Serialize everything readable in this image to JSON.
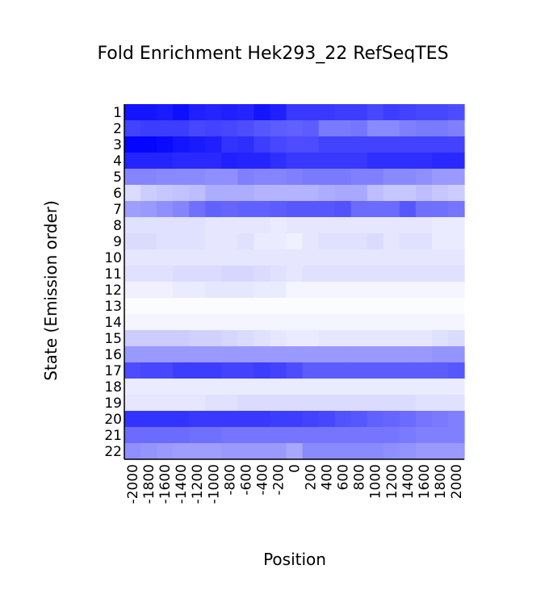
{
  "chart_data": {
    "type": "heatmap",
    "title": "Fold Enrichment Hek293_22 RefSeqTES",
    "xlabel": "Position",
    "ylabel": "State (Emission order)",
    "x": [
      "-2000",
      "-1800",
      "-1600",
      "-1400",
      "-1200",
      "-1000",
      "-800",
      "-600",
      "-400",
      "-200",
      "0",
      "200",
      "400",
      "600",
      "800",
      "1000",
      "1200",
      "1400",
      "1600",
      "1800",
      "2000"
    ],
    "y": [
      "1",
      "2",
      "3",
      "4",
      "5",
      "6",
      "7",
      "8",
      "9",
      "10",
      "11",
      "12",
      "13",
      "14",
      "15",
      "16",
      "17",
      "18",
      "19",
      "20",
      "21",
      "22"
    ],
    "color_low": "#ffffff",
    "color_high": "#0000ff",
    "values": [
      [
        0.92,
        0.92,
        0.9,
        0.94,
        0.88,
        0.86,
        0.88,
        0.86,
        0.92,
        0.88,
        0.78,
        0.78,
        0.78,
        0.76,
        0.76,
        0.72,
        0.76,
        0.74,
        0.72,
        0.72,
        0.7
      ],
      [
        0.74,
        0.76,
        0.76,
        0.76,
        0.72,
        0.74,
        0.72,
        0.7,
        0.66,
        0.64,
        0.62,
        0.64,
        0.52,
        0.52,
        0.54,
        0.46,
        0.46,
        0.5,
        0.52,
        0.52,
        0.5
      ],
      [
        0.98,
        0.98,
        0.96,
        0.92,
        0.9,
        0.88,
        0.8,
        0.82,
        0.76,
        0.72,
        0.7,
        0.7,
        0.74,
        0.74,
        0.74,
        0.74,
        0.74,
        0.74,
        0.74,
        0.74,
        0.74
      ],
      [
        0.86,
        0.86,
        0.86,
        0.84,
        0.84,
        0.84,
        0.88,
        0.86,
        0.86,
        0.82,
        0.78,
        0.78,
        0.78,
        0.78,
        0.78,
        0.82,
        0.82,
        0.82,
        0.82,
        0.84,
        0.84
      ],
      [
        0.48,
        0.48,
        0.46,
        0.46,
        0.46,
        0.44,
        0.44,
        0.5,
        0.48,
        0.48,
        0.5,
        0.52,
        0.52,
        0.52,
        0.5,
        0.5,
        0.46,
        0.46,
        0.44,
        0.4,
        0.4
      ],
      [
        0.14,
        0.2,
        0.22,
        0.24,
        0.26,
        0.32,
        0.32,
        0.32,
        0.3,
        0.3,
        0.3,
        0.3,
        0.32,
        0.34,
        0.34,
        0.26,
        0.22,
        0.22,
        0.26,
        0.22,
        0.2
      ],
      [
        0.38,
        0.4,
        0.44,
        0.48,
        0.56,
        0.62,
        0.6,
        0.62,
        0.62,
        0.64,
        0.66,
        0.66,
        0.66,
        0.68,
        0.58,
        0.58,
        0.58,
        0.66,
        0.56,
        0.56,
        0.54
      ],
      [
        0.12,
        0.12,
        0.12,
        0.12,
        0.12,
        0.1,
        0.1,
        0.1,
        0.1,
        0.08,
        0.1,
        0.1,
        0.1,
        0.1,
        0.1,
        0.1,
        0.1,
        0.1,
        0.1,
        0.08,
        0.08
      ],
      [
        0.14,
        0.14,
        0.12,
        0.12,
        0.12,
        0.1,
        0.1,
        0.12,
        0.08,
        0.08,
        0.06,
        0.1,
        0.12,
        0.12,
        0.12,
        0.14,
        0.1,
        0.12,
        0.12,
        0.08,
        0.08
      ],
      [
        0.1,
        0.1,
        0.1,
        0.1,
        0.1,
        0.1,
        0.1,
        0.1,
        0.1,
        0.1,
        0.1,
        0.1,
        0.1,
        0.1,
        0.1,
        0.1,
        0.1,
        0.1,
        0.1,
        0.1,
        0.1
      ],
      [
        0.12,
        0.12,
        0.12,
        0.14,
        0.14,
        0.14,
        0.16,
        0.16,
        0.14,
        0.12,
        0.1,
        0.12,
        0.12,
        0.12,
        0.12,
        0.12,
        0.12,
        0.12,
        0.12,
        0.12,
        0.12
      ],
      [
        0.06,
        0.06,
        0.06,
        0.08,
        0.08,
        0.1,
        0.1,
        0.1,
        0.08,
        0.08,
        0.04,
        0.04,
        0.04,
        0.04,
        0.04,
        0.04,
        0.04,
        0.04,
        0.04,
        0.04,
        0.04
      ],
      [
        0.01,
        0.01,
        0.01,
        0.01,
        0.01,
        0.01,
        0.01,
        0.01,
        0.01,
        0.01,
        0.01,
        0.01,
        0.01,
        0.01,
        0.01,
        0.01,
        0.01,
        0.01,
        0.01,
        0.01,
        0.01
      ],
      [
        0.04,
        0.04,
        0.04,
        0.04,
        0.04,
        0.04,
        0.04,
        0.04,
        0.04,
        0.04,
        0.04,
        0.04,
        0.04,
        0.04,
        0.04,
        0.04,
        0.04,
        0.04,
        0.04,
        0.04,
        0.04
      ],
      [
        0.2,
        0.2,
        0.2,
        0.2,
        0.18,
        0.18,
        0.16,
        0.14,
        0.12,
        0.1,
        0.08,
        0.08,
        0.1,
        0.1,
        0.1,
        0.1,
        0.1,
        0.1,
        0.1,
        0.12,
        0.14
      ],
      [
        0.4,
        0.4,
        0.4,
        0.4,
        0.4,
        0.4,
        0.4,
        0.4,
        0.4,
        0.4,
        0.4,
        0.4,
        0.4,
        0.4,
        0.4,
        0.4,
        0.4,
        0.4,
        0.4,
        0.42,
        0.42
      ],
      [
        0.7,
        0.72,
        0.72,
        0.76,
        0.76,
        0.76,
        0.74,
        0.74,
        0.76,
        0.74,
        0.7,
        0.64,
        0.64,
        0.64,
        0.64,
        0.64,
        0.64,
        0.64,
        0.64,
        0.64,
        0.66
      ],
      [
        0.08,
        0.08,
        0.08,
        0.08,
        0.08,
        0.08,
        0.08,
        0.08,
        0.08,
        0.08,
        0.08,
        0.08,
        0.08,
        0.08,
        0.08,
        0.08,
        0.08,
        0.08,
        0.08,
        0.08,
        0.08
      ],
      [
        0.1,
        0.1,
        0.1,
        0.1,
        0.1,
        0.12,
        0.12,
        0.14,
        0.14,
        0.14,
        0.14,
        0.14,
        0.14,
        0.14,
        0.14,
        0.14,
        0.14,
        0.14,
        0.12,
        0.12,
        0.12
      ],
      [
        0.8,
        0.8,
        0.8,
        0.8,
        0.78,
        0.78,
        0.78,
        0.78,
        0.78,
        0.76,
        0.76,
        0.74,
        0.72,
        0.68,
        0.66,
        0.62,
        0.6,
        0.58,
        0.54,
        0.52,
        0.5
      ],
      [
        0.58,
        0.58,
        0.58,
        0.58,
        0.56,
        0.56,
        0.54,
        0.54,
        0.54,
        0.54,
        0.54,
        0.54,
        0.54,
        0.54,
        0.54,
        0.54,
        0.54,
        0.52,
        0.5,
        0.5,
        0.5
      ],
      [
        0.44,
        0.42,
        0.4,
        0.38,
        0.38,
        0.38,
        0.4,
        0.4,
        0.4,
        0.4,
        0.34,
        0.46,
        0.46,
        0.46,
        0.46,
        0.46,
        0.44,
        0.42,
        0.4,
        0.4,
        0.4
      ]
    ]
  }
}
